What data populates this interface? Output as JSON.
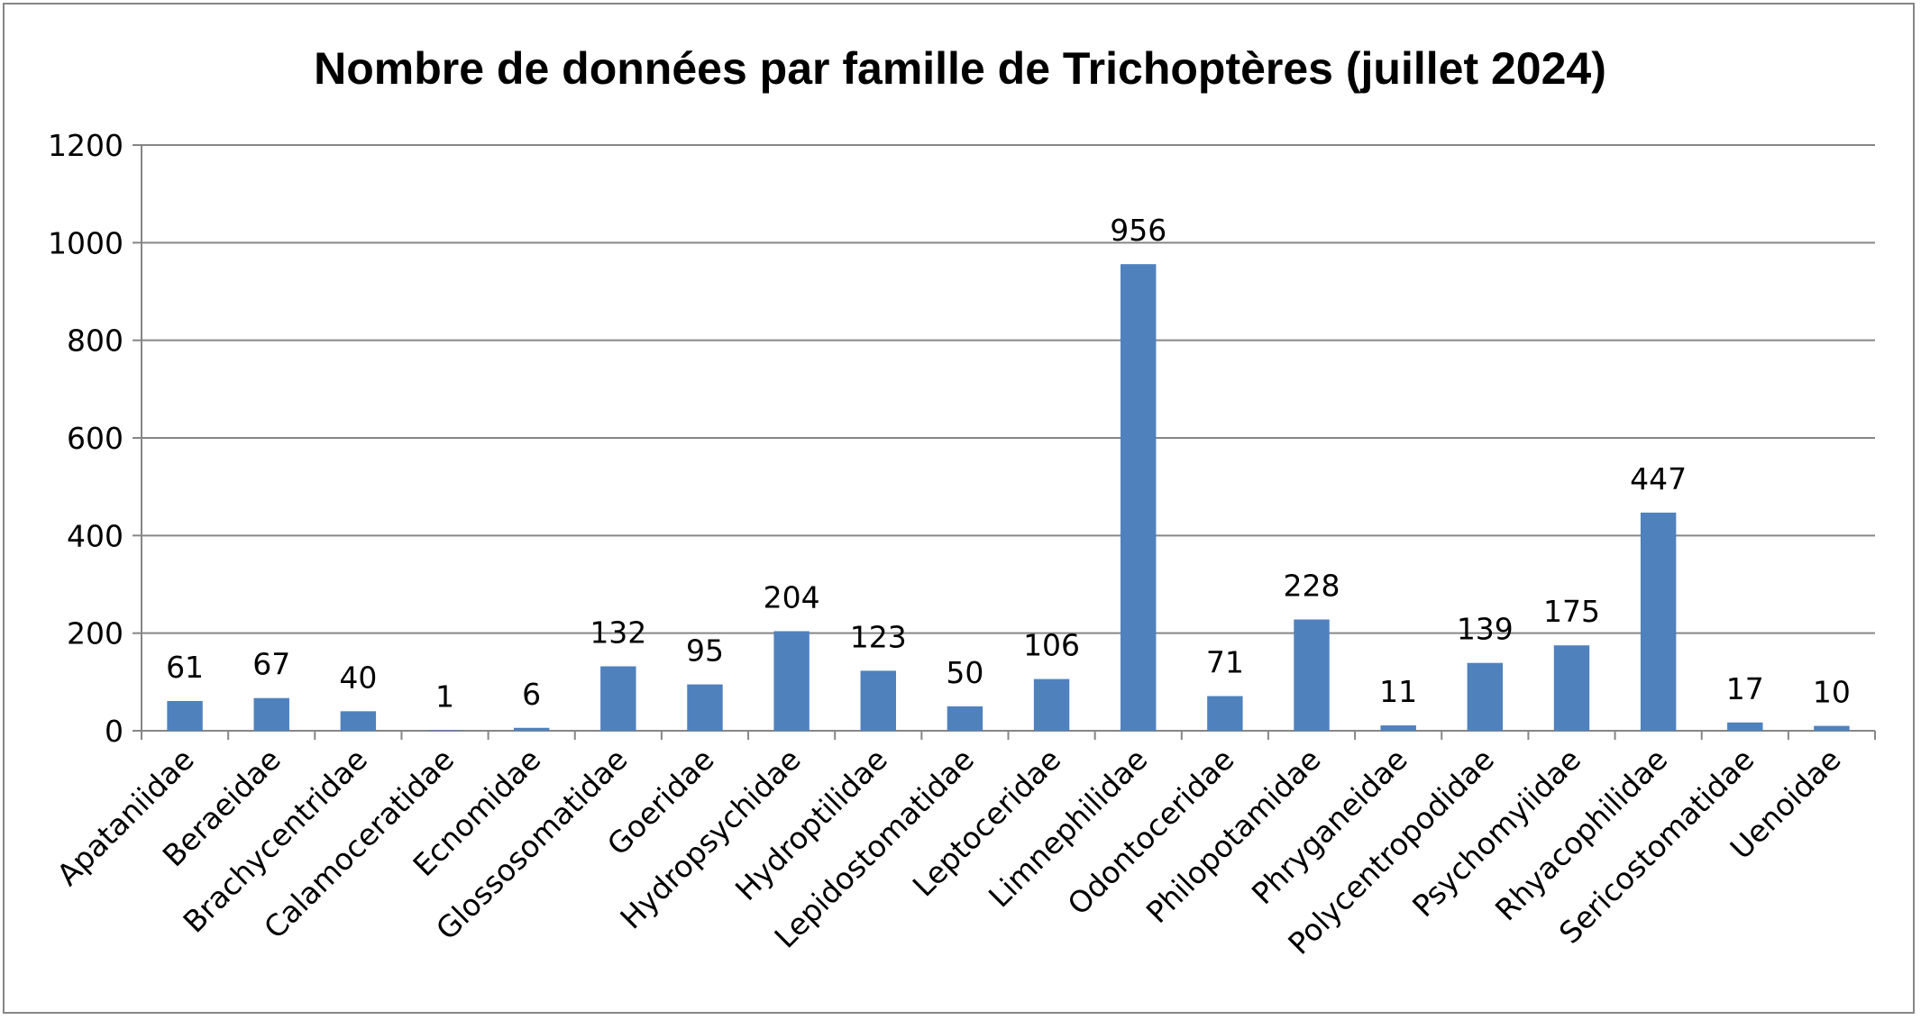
{
  "chart_data": {
    "type": "bar",
    "title": "Nombre de données par famille de Trichoptères (juillet 2024)",
    "xlabel": "",
    "ylabel": "",
    "ylim": [
      0,
      1200
    ],
    "yticks": [
      0,
      200,
      400,
      600,
      800,
      1000,
      1200
    ],
    "grid": true,
    "legend": "none",
    "bar_color": "#4f81bd",
    "categories": [
      "Apataniidae",
      "Beraeidae",
      "Brachycentridae",
      "Calamoceratidae",
      "Ecnomidae",
      "Glossosomatidae",
      "Goeridae",
      "Hydropsychidae",
      "Hydroptilidae",
      "Lepidostomatidae",
      "Leptoceridae",
      "Limnephilidae",
      "Odontoceridae",
      "Philopotamidae",
      "Phryganeidae",
      "Polycentropodidae",
      "Psychomyiidae",
      "Rhyacophilidae",
      "Sericostomatidae",
      "Uenoidae"
    ],
    "values": [
      61,
      67,
      40,
      1,
      6,
      132,
      95,
      204,
      123,
      50,
      106,
      956,
      71,
      228,
      11,
      139,
      175,
      447,
      17,
      10
    ]
  }
}
